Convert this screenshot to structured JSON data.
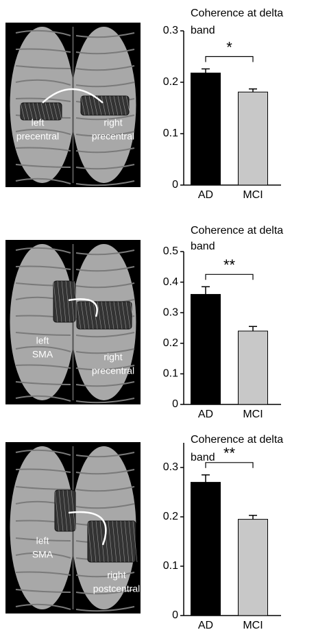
{
  "chart_data": [
    {
      "type": "bar",
      "title": [
        "Coherence at delta",
        "band"
      ],
      "categories": [
        "AD",
        "MCI"
      ],
      "values": [
        0.218,
        0.181
      ],
      "errors": [
        0.008,
        0.006
      ],
      "colors": [
        "#000000",
        "#c8c8c8"
      ],
      "ylim": [
        0,
        0.3
      ],
      "yticks": [
        0,
        0.1,
        0.2,
        0.3
      ],
      "significance": "*",
      "brain_labels": [
        [
          "left",
          "precentral"
        ],
        [
          "right",
          "precentral"
        ]
      ]
    },
    {
      "type": "bar",
      "title": [
        "Coherence at delta",
        "band"
      ],
      "categories": [
        "AD",
        "MCI"
      ],
      "values": [
        0.36,
        0.24
      ],
      "errors": [
        0.025,
        0.015
      ],
      "colors": [
        "#000000",
        "#c8c8c8"
      ],
      "ylim": [
        0,
        0.5
      ],
      "yticks": [
        0,
        0.1,
        0.2,
        0.3,
        0.4,
        0.5
      ],
      "significance": "**",
      "brain_labels": [
        [
          "left",
          "SMA"
        ],
        [
          "right",
          "precentral"
        ]
      ]
    },
    {
      "type": "bar",
      "title": [
        "Coherence at delta",
        "band"
      ],
      "categories": [
        "AD",
        "MCI"
      ],
      "values": [
        0.27,
        0.195
      ],
      "errors": [
        0.015,
        0.008
      ],
      "colors": [
        "#000000",
        "#c8c8c8"
      ],
      "ylim": [
        0,
        0.35
      ],
      "yticks": [
        0,
        0.1,
        0.2,
        0.3
      ],
      "significance": "**",
      "brain_labels": [
        [
          "left",
          "SMA"
        ],
        [
          "right",
          "postcentral"
        ]
      ]
    }
  ]
}
